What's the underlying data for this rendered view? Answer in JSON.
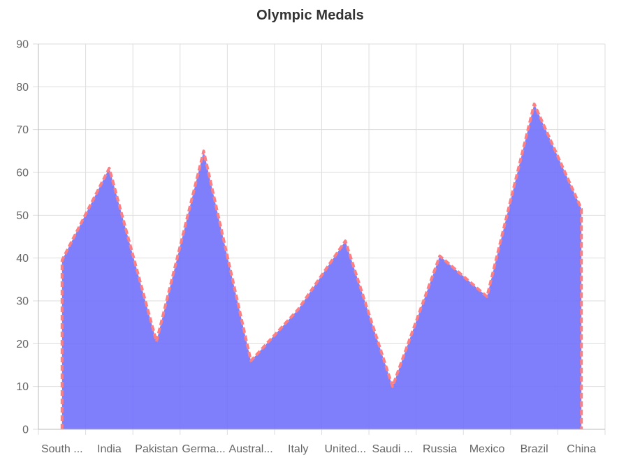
{
  "chart_data": {
    "type": "area",
    "title": "Olympic Medals",
    "categories": [
      "South ...",
      "India",
      "Pakistan",
      "Germa...",
      "Austral...",
      "Italy",
      "United...",
      "Saudi ...",
      "Russia",
      "Mexico",
      "Brazil",
      "China"
    ],
    "values": [
      39.5,
      61,
      20.5,
      65,
      16,
      28,
      44,
      10,
      40.5,
      31,
      76,
      51.5
    ],
    "xlabel": "",
    "ylabel": "",
    "ylim": [
      0,
      90
    ],
    "yticks": [
      "0",
      "10",
      "20",
      "30",
      "40",
      "50",
      "60",
      "70",
      "80",
      "90"
    ],
    "grid": true,
    "legend": "none",
    "colors": {
      "fill": "#6c6cfc",
      "border": "#fc8083",
      "grid": "#dddddd",
      "axis": "#bbbbbb",
      "text": "#666666"
    }
  }
}
